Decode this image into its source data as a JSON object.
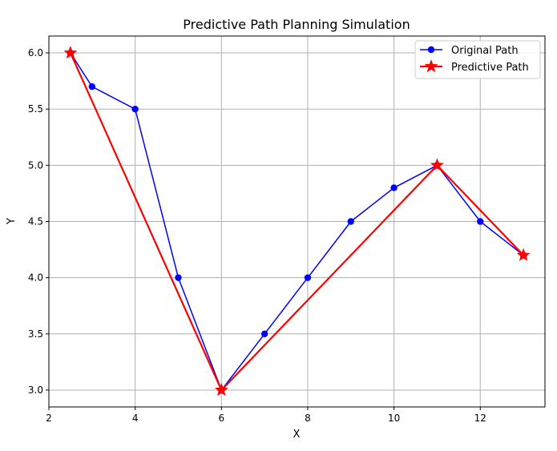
{
  "chart_data": {
    "type": "line",
    "title": "Predictive Path Planning Simulation",
    "xlabel": "X",
    "ylabel": "Y",
    "xlim": [
      2.0,
      13.5
    ],
    "ylim": [
      2.85,
      6.15
    ],
    "xticks": [
      2,
      4,
      6,
      8,
      10,
      12
    ],
    "yticks": [
      3.0,
      3.5,
      4.0,
      4.5,
      5.0,
      5.5,
      6.0
    ],
    "grid": true,
    "legend_position": "top-right",
    "series": [
      {
        "name": "Original Path",
        "color": "#0000ff",
        "marker": "circle",
        "points": [
          {
            "x": 2.5,
            "y": 6.0
          },
          {
            "x": 3,
            "y": 5.7
          },
          {
            "x": 4,
            "y": 5.5
          },
          {
            "x": 5,
            "y": 4.0
          },
          {
            "x": 6,
            "y": 3.0
          },
          {
            "x": 7,
            "y": 3.5
          },
          {
            "x": 8,
            "y": 4.0
          },
          {
            "x": 9,
            "y": 4.5
          },
          {
            "x": 10,
            "y": 4.8
          },
          {
            "x": 11,
            "y": 5.0
          },
          {
            "x": 12,
            "y": 4.5
          },
          {
            "x": 13,
            "y": 4.2
          }
        ]
      },
      {
        "name": "Predictive Path",
        "color": "#ff0000",
        "marker": "star",
        "points": [
          {
            "x": 2.5,
            "y": 6.0
          },
          {
            "x": 6,
            "y": 3.0
          },
          {
            "x": 11,
            "y": 5.0
          },
          {
            "x": 13,
            "y": 4.2
          }
        ]
      }
    ]
  }
}
